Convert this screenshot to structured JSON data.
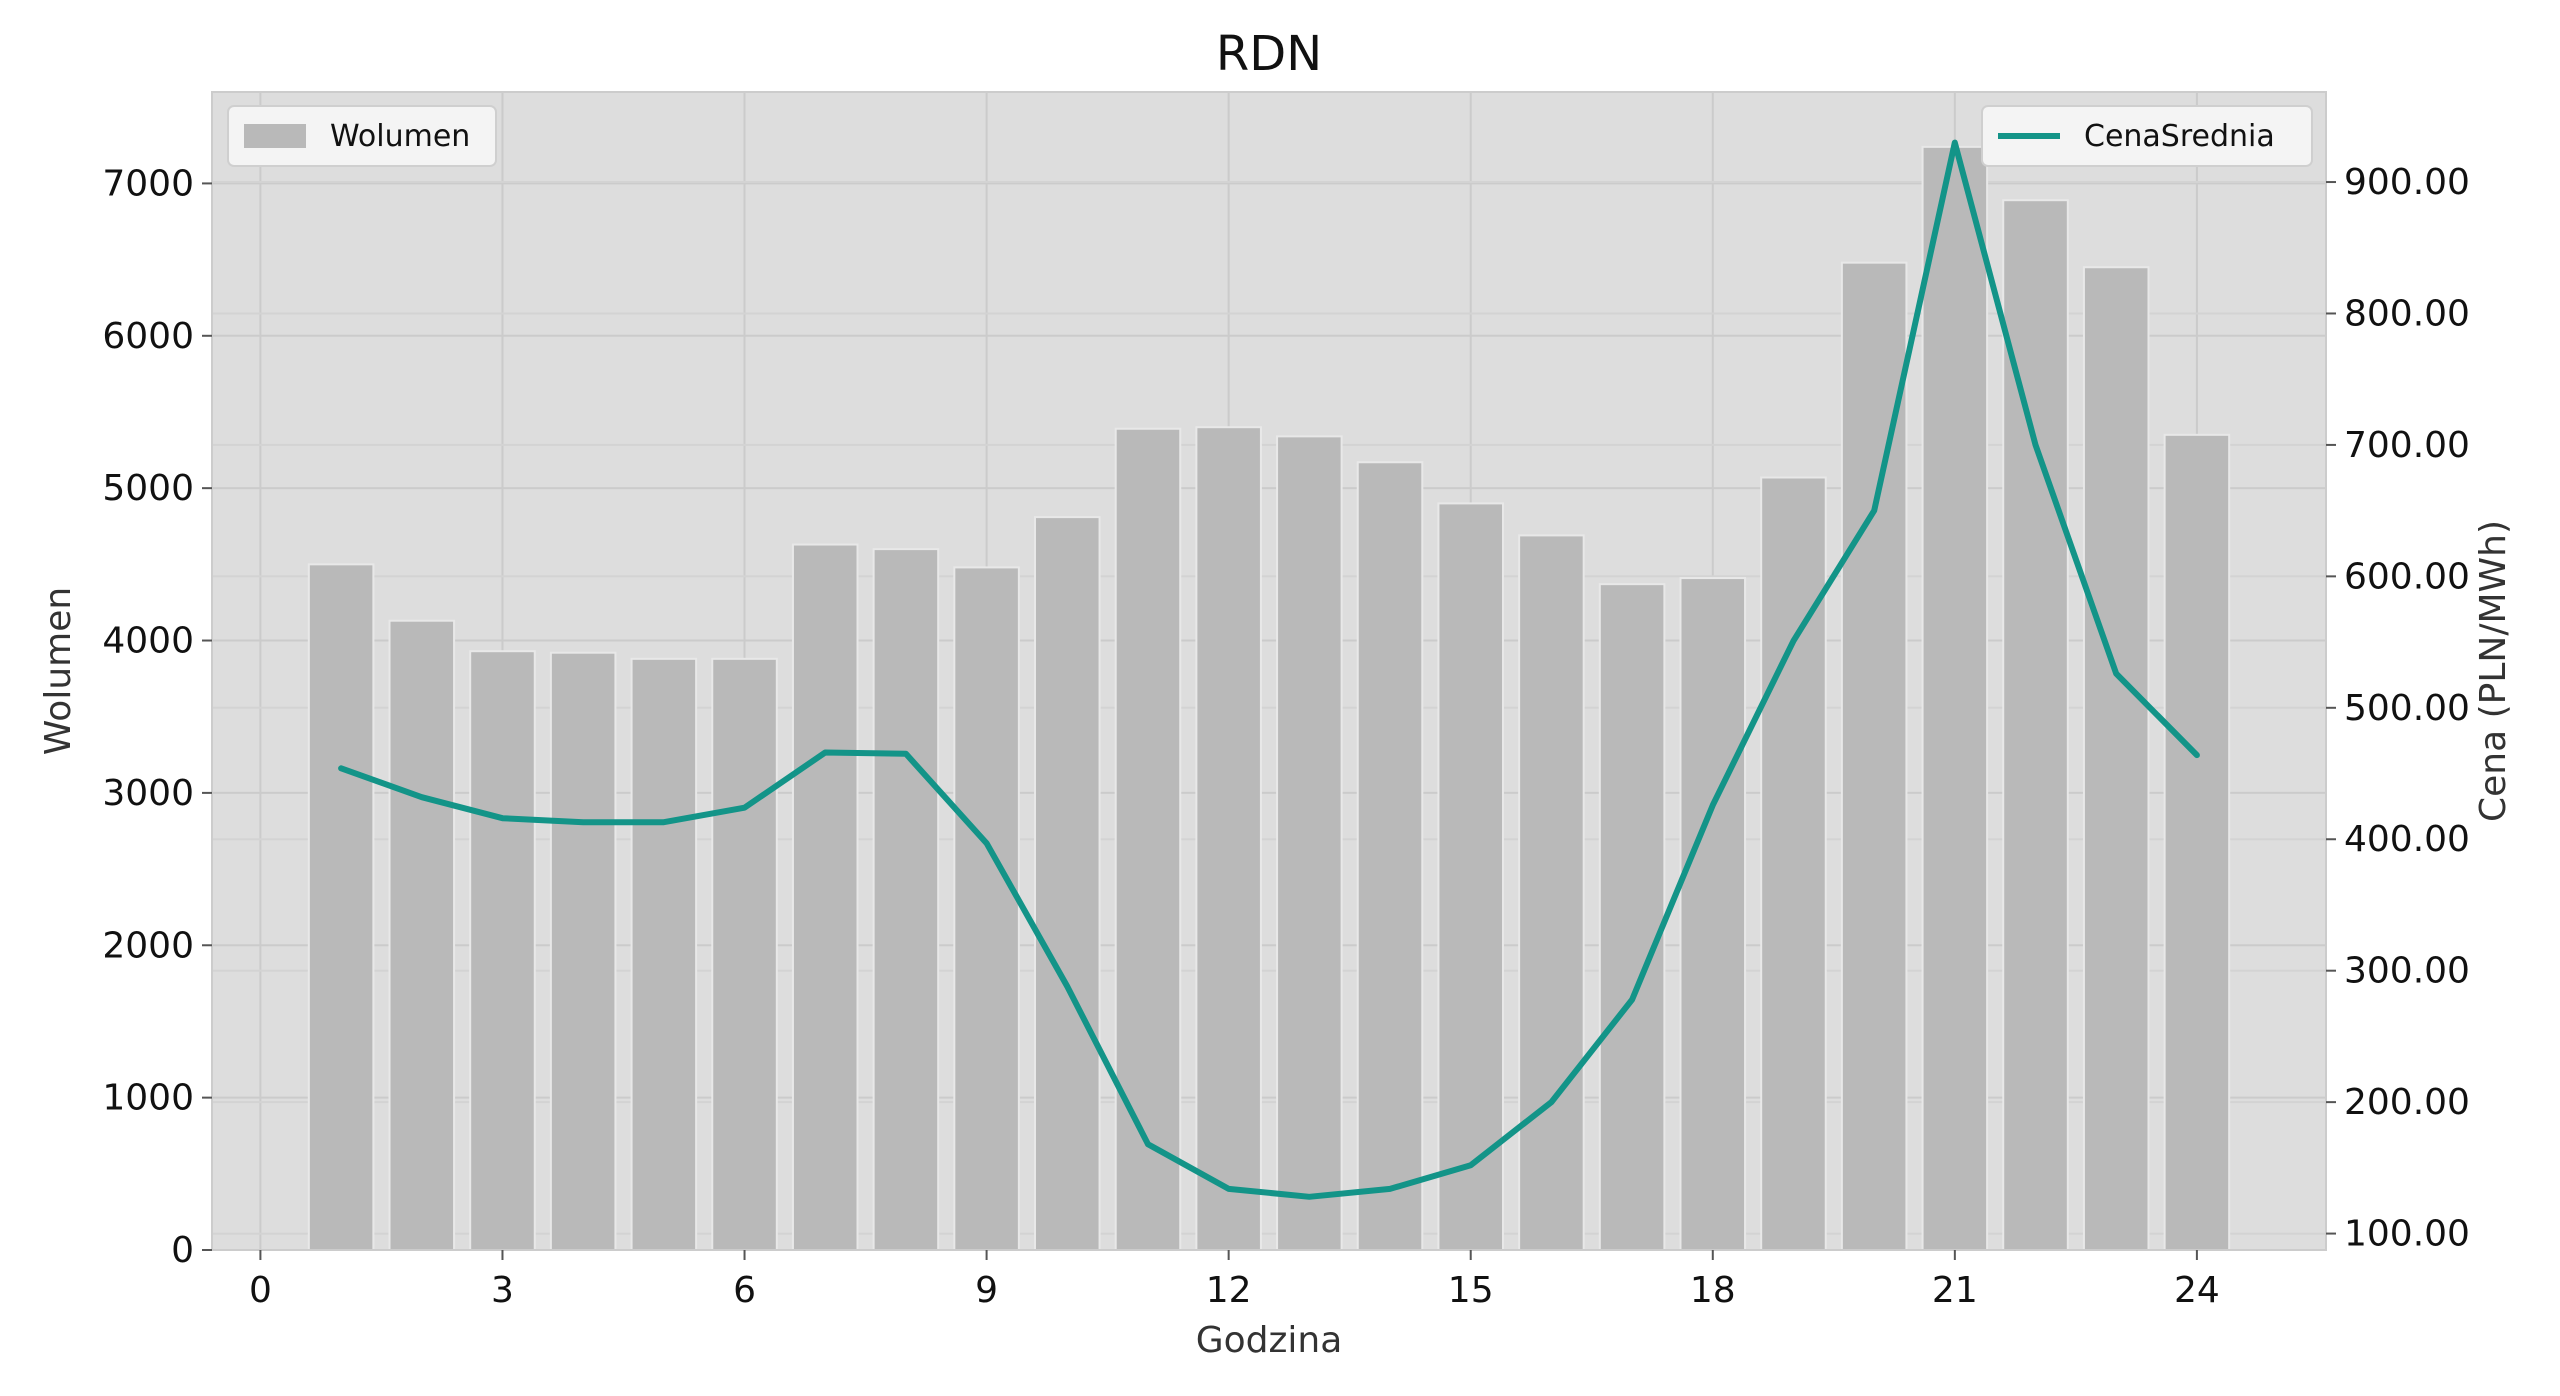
{
  "chart_data": {
    "type": "bar",
    "title": "RDN",
    "xlabel": "Godzina",
    "ylabel": "Wolumen",
    "y2label": "Cena (PLN/MWh)",
    "x": [
      1,
      2,
      3,
      4,
      5,
      6,
      7,
      8,
      9,
      10,
      11,
      12,
      13,
      14,
      15,
      16,
      17,
      18,
      19,
      20,
      21,
      22,
      23,
      24
    ],
    "x_ticks": [
      "0",
      "3",
      "6",
      "9",
      "12",
      "15",
      "18",
      "21",
      "24"
    ],
    "x_tick_values": [
      0,
      3,
      6,
      9,
      12,
      15,
      18,
      21,
      24
    ],
    "xlim": [
      -0.6,
      25.6
    ],
    "ylim": [
      0,
      7600
    ],
    "y_ticks": [
      0,
      1000,
      2000,
      3000,
      4000,
      5000,
      6000,
      7000
    ],
    "y_tick_labels": [
      "0",
      "1000",
      "2000",
      "3000",
      "4000",
      "5000",
      "6000",
      "7000"
    ],
    "y2lim": [
      87.5,
      968.5
    ],
    "y2_ticks": [
      100,
      200,
      300,
      400,
      500,
      600,
      700,
      800,
      900
    ],
    "y2_tick_labels": [
      "100.00",
      "200.00",
      "300.00",
      "400.00",
      "500.00",
      "600.00",
      "700.00",
      "800.00",
      "900.00"
    ],
    "grid": true,
    "series": [
      {
        "name": "Wolumen",
        "type": "bar",
        "axis": "left",
        "color": "#b9b9b9",
        "values": [
          4500,
          4130,
          3930,
          3920,
          3880,
          3880,
          4630,
          4600,
          4480,
          4810,
          5390,
          5400,
          5340,
          5170,
          4900,
          4690,
          4370,
          4410,
          5070,
          6480,
          7240,
          6890,
          6450,
          5350
        ]
      },
      {
        "name": "CenaSrednia",
        "type": "line",
        "axis": "right",
        "color": "#139488",
        "values": [
          454,
          432,
          416,
          413,
          413,
          424,
          466,
          465,
          397,
          288,
          168,
          134,
          128,
          134,
          152,
          200,
          278,
          426,
          551,
          650,
          930,
          700,
          526,
          464
        ]
      }
    ],
    "legend": [
      {
        "label": "Wolumen",
        "position": "top-left"
      },
      {
        "label": "CenaSrednia",
        "position": "top-right"
      }
    ]
  }
}
